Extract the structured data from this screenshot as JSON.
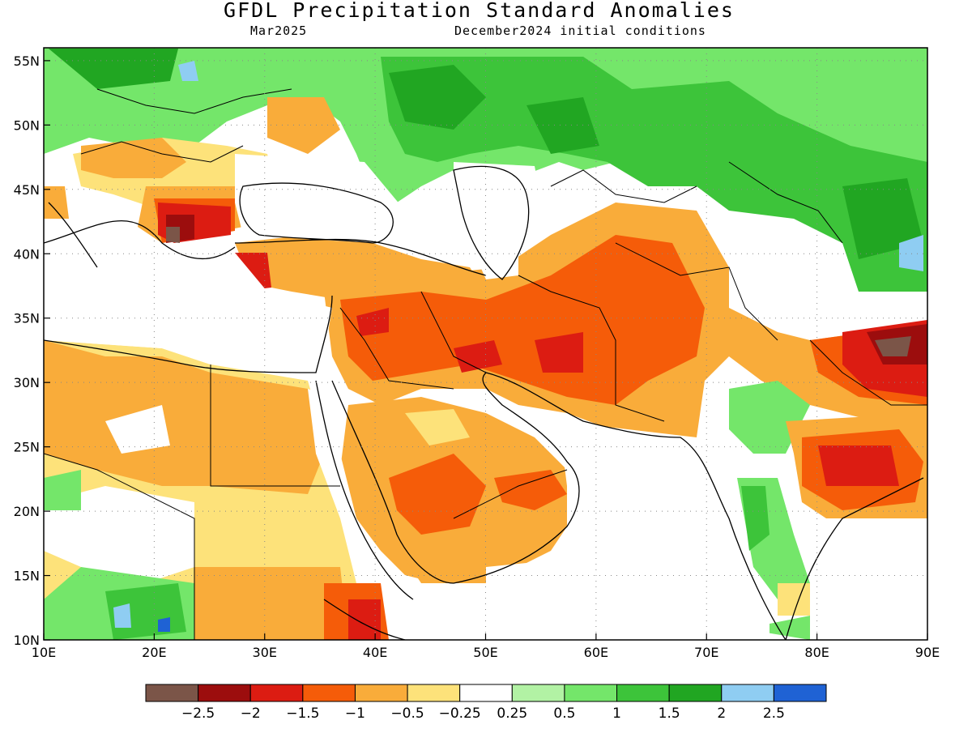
{
  "title": "GFDL Precipitation Standard Anomalies",
  "subtitle_left": "Mar2025",
  "subtitle_right": "December2024 initial conditions",
  "map": {
    "lon_range": [
      10,
      90
    ],
    "lat_range": [
      10,
      56
    ],
    "lon_ticks": [
      "10E",
      "20E",
      "30E",
      "40E",
      "50E",
      "60E",
      "70E",
      "80E",
      "90E"
    ],
    "lat_ticks": [
      "10N",
      "15N",
      "20N",
      "25N",
      "30N",
      "35N",
      "40N",
      "45N",
      "50N",
      "55N"
    ],
    "gridlines": "dotted"
  },
  "colorbar": {
    "colors": [
      "#7b5548",
      "#9c0d0d",
      "#dc1c12",
      "#f55c09",
      "#f9ac3a",
      "#fde27a",
      "#ffffff",
      "#b2f2a4",
      "#74e66a",
      "#3dc43a",
      "#21a622",
      "#8fcdf2",
      "#1f62d4"
    ],
    "labels": [
      "−2.5",
      "−2",
      "−1.5",
      "−1",
      "−0.5",
      "−0.25",
      "0.25",
      "0.5",
      "1",
      "1.5",
      "2",
      "2.5"
    ]
  },
  "regions": [
    {
      "name": "europe-north",
      "color": "#74e66a"
    },
    {
      "name": "russia-kazakhstan",
      "color": "#3dc43a"
    },
    {
      "name": "balkans",
      "color": "#fde27a"
    },
    {
      "name": "turkey",
      "color": "#f9ac3a"
    },
    {
      "name": "iran-afghanistan",
      "color": "#f55c09"
    },
    {
      "name": "arabia",
      "color": "#f9ac3a"
    },
    {
      "name": "north-africa",
      "color": "#fde27a"
    },
    {
      "name": "central-india",
      "color": "#f55c09"
    },
    {
      "name": "tibet",
      "color": "#dc1c12"
    }
  ]
}
